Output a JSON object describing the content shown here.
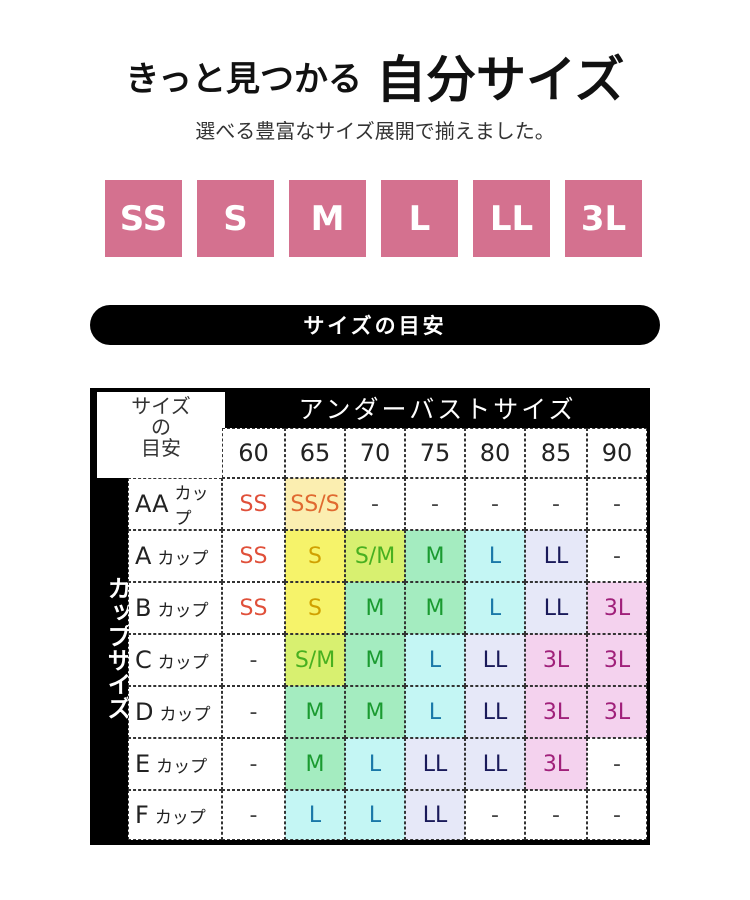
{
  "header": {
    "title_part1": "きっと見つかる",
    "title_part2": "自分サイズ",
    "subtitle": "選べる豊富なサイズ展開で揃えました。"
  },
  "sizes": [
    "SS",
    "S",
    "M",
    "L",
    "LL",
    "3L"
  ],
  "size_color": "#d4718f",
  "section_title": "サイズの目安",
  "table": {
    "corner": [
      "サイズ",
      "の",
      "目安"
    ],
    "underbust_header": "アンダーバストサイズ",
    "cup_header": "カップサイズ",
    "underbust": [
      "60",
      "65",
      "70",
      "75",
      "80",
      "85",
      "90"
    ],
    "cup_suffix": "カップ",
    "rows": [
      {
        "cup": "AA",
        "values": [
          "SS",
          "SS/S",
          "-",
          "-",
          "-",
          "-",
          "-"
        ]
      },
      {
        "cup": "A",
        "values": [
          "SS",
          "S",
          "S/M",
          "M",
          "L",
          "LL",
          "-"
        ]
      },
      {
        "cup": "B",
        "values": [
          "SS",
          "S",
          "M",
          "M",
          "L",
          "LL",
          "3L"
        ]
      },
      {
        "cup": "C",
        "values": [
          "-",
          "S/M",
          "M",
          "L",
          "LL",
          "3L",
          "3L"
        ]
      },
      {
        "cup": "D",
        "values": [
          "-",
          "M",
          "M",
          "L",
          "LL",
          "3L",
          "3L"
        ]
      },
      {
        "cup": "E",
        "values": [
          "-",
          "M",
          "L",
          "LL",
          "LL",
          "3L",
          "-"
        ]
      },
      {
        "cup": "F",
        "values": [
          "-",
          "L",
          "L",
          "LL",
          "-",
          "-",
          "-"
        ]
      }
    ],
    "colors": {
      "SS": {
        "bg": "#ffffff",
        "fg": "#e0503a"
      },
      "SS/S": {
        "bg": "#fbeeb0",
        "fg": "#e06a30"
      },
      "S": {
        "bg": "#f6f36a",
        "fg": "#d0a000"
      },
      "S/M": {
        "bg": "#d8f070",
        "fg": "#48b020"
      },
      "M": {
        "bg": "#a4ecc0",
        "fg": "#1a9a30"
      },
      "L": {
        "bg": "#c4f6f4",
        "fg": "#1a78a8"
      },
      "LL": {
        "bg": "#e6e8f8",
        "fg": "#1a1a5a"
      },
      "3L": {
        "bg": "#f4d2ee",
        "fg": "#a0207a"
      },
      "-": {
        "bg": "#ffffff",
        "fg": "#444444"
      }
    }
  }
}
